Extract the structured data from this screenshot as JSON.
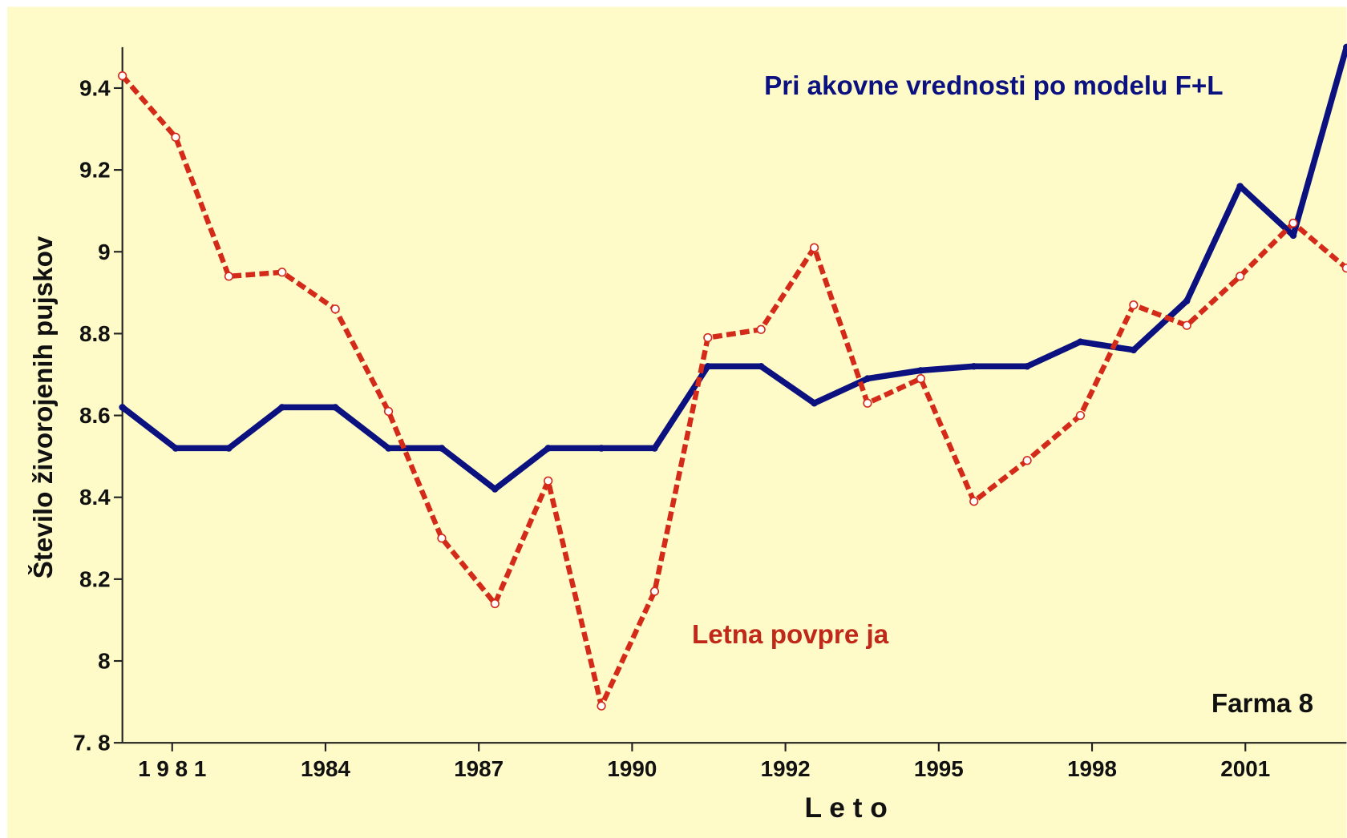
{
  "chart_data": {
    "type": "line",
    "x_axis_label": "L e t o",
    "y_axis_label": "Število živorojenih pujskov",
    "annotations": [
      "Pri akovne vrednosti po modelu F+L",
      "Letna povpre ja",
      "Farma 8"
    ],
    "categories": [
      null,
      null,
      null,
      null,
      null,
      null,
      null,
      null,
      null,
      null,
      null,
      null,
      null,
      null,
      null,
      null,
      null,
      null,
      null,
      null,
      null,
      null,
      null,
      null
    ],
    "xtick_labels": [
      "1 9 8 1",
      "1984",
      "1987",
      "1990",
      "1992",
      "1995",
      "1998",
      "2001"
    ],
    "series": [
      {
        "color": "#0b1280",
        "style": "solid",
        "values": [
          8.62,
          8.52,
          8.52,
          8.62,
          8.62,
          8.52,
          8.52,
          8.42,
          8.52,
          8.52,
          8.52,
          8.72,
          8.72,
          8.63,
          8.69,
          8.71,
          8.72,
          8.72,
          8.78,
          8.76,
          8.88,
          9.16,
          9.04,
          9.5
        ]
      },
      {
        "color": "#d42a1a",
        "style": "dashed",
        "values": [
          9.43,
          9.28,
          8.94,
          8.95,
          8.86,
          8.61,
          8.3,
          8.14,
          8.44,
          7.89,
          8.17,
          8.79,
          8.81,
          9.01,
          8.63,
          8.69,
          8.39,
          8.49,
          8.6,
          8.87,
          8.82,
          8.94,
          9.07,
          8.96
        ]
      }
    ],
    "ylim": [
      7.8,
      9.5
    ],
    "yticks": [
      {
        "value": 7.8,
        "label": "7. 8"
      },
      8.0,
      8.2,
      8.4,
      8.6,
      8.8,
      9.0,
      9.2,
      9.4
    ],
    "background": "#fffbc8"
  }
}
